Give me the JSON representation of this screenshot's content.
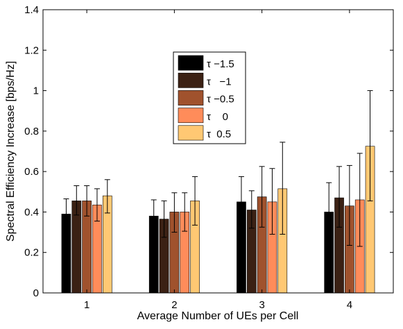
{
  "chart_data": {
    "type": "bar",
    "title": "",
    "xlabel": "Average Number of UEs per Cell",
    "ylabel": "Spectral Efficiency Increase [bps/Hz]",
    "ylim": [
      0,
      1.4
    ],
    "yticks": [
      "0",
      "0.2",
      "0.4",
      "0.6",
      "0.8",
      "1",
      "1.2",
      "1.4"
    ],
    "categories": [
      "1",
      "2",
      "3",
      "4"
    ],
    "grid": false,
    "legend_position": "top-center",
    "error_bars": true,
    "series": [
      {
        "name": "τ −1.5",
        "color": "#000000",
        "values": [
          0.39,
          0.38,
          0.45,
          0.4
        ],
        "err_low": [
          0.32,
          0.3,
          0.33,
          0.29
        ],
        "err_high": [
          0.465,
          0.46,
          0.575,
          0.545
        ]
      },
      {
        "name": "τ   −1",
        "color": "#3b2114",
        "values": [
          0.455,
          0.365,
          0.41,
          0.47
        ],
        "err_low": [
          0.385,
          0.275,
          0.32,
          0.325
        ],
        "err_high": [
          0.53,
          0.455,
          0.505,
          0.625
        ]
      },
      {
        "name": "τ −0.5",
        "color": "#a0522d",
        "values": [
          0.455,
          0.4,
          0.475,
          0.43
        ],
        "err_low": [
          0.38,
          0.3,
          0.325,
          0.235
        ],
        "err_high": [
          0.53,
          0.495,
          0.625,
          0.63
        ]
      },
      {
        "name": "τ    0",
        "color": "#ff8c5a",
        "values": [
          0.435,
          0.4,
          0.45,
          0.46
        ],
        "err_low": [
          0.355,
          0.305,
          0.29,
          0.23
        ],
        "err_high": [
          0.515,
          0.495,
          0.615,
          0.69
        ]
      },
      {
        "name": "τ  0.5",
        "color": "#ffc873",
        "values": [
          0.48,
          0.455,
          0.515,
          0.725
        ],
        "err_low": [
          0.395,
          0.335,
          0.29,
          0.455
        ],
        "err_high": [
          0.56,
          0.575,
          0.745,
          1.0
        ]
      }
    ]
  }
}
